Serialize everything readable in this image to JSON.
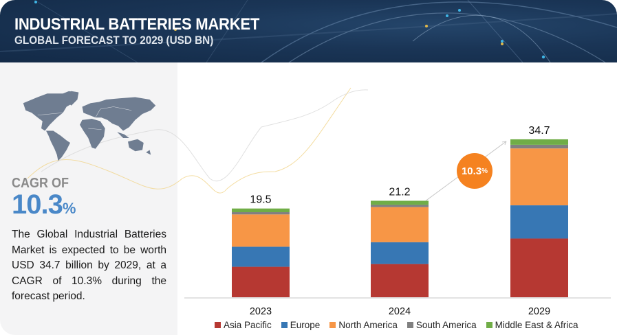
{
  "header": {
    "title": "INDUSTRIAL BATTERIES MARKET",
    "subtitle": "GLOBAL FORECAST TO 2029 (USD BN)"
  },
  "left_panel": {
    "cagr_label": "CAGR OF",
    "cagr_value": "10.3",
    "cagr_unit": "%",
    "description": "The Global Industrial Batteries Market is expected to be worth USD 34.7 billion by 2029, at a CAGR of 10.3% during the forecast period.",
    "map_icon": "world-map-icon"
  },
  "badge": {
    "value": "10.3",
    "unit": "%",
    "color": "#f58220"
  },
  "chart_data": {
    "type": "bar",
    "stacked": true,
    "title": "INDUSTRIAL BATTERIES MARKET",
    "subtitle": "GLOBAL FORECAST TO 2029 (USD BN)",
    "xlabel": "",
    "ylabel": "",
    "categories": [
      "2023",
      "2024",
      "2029"
    ],
    "totals": [
      "19.5",
      "21.2",
      "34.7"
    ],
    "total_values": [
      19.5,
      21.2,
      34.7
    ],
    "ylim": [
      0,
      40
    ],
    "grid": false,
    "legend_position": "bottom",
    "series": [
      {
        "name": "Asia Pacific",
        "color": "#b63832",
        "values": [
          6.7,
          7.3,
          12.9
        ]
      },
      {
        "name": "Europe",
        "color": "#3777b4",
        "values": [
          4.4,
          4.8,
          7.3
        ]
      },
      {
        "name": "North America",
        "color": "#f79646",
        "values": [
          7.1,
          7.7,
          12.5
        ]
      },
      {
        "name": "South America",
        "color": "#808080",
        "values": [
          0.5,
          0.5,
          0.8
        ]
      },
      {
        "name": "Middle East & Africa",
        "color": "#70ad47",
        "values": [
          0.8,
          0.9,
          1.2
        ]
      }
    ]
  }
}
